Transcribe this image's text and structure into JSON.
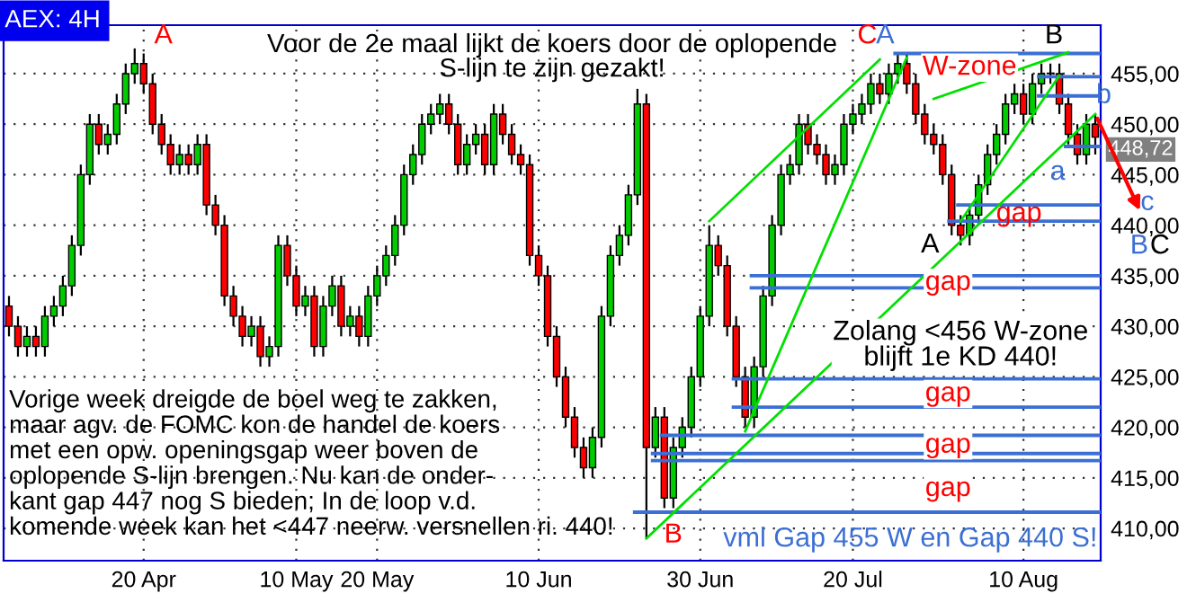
{
  "chart_data": {
    "type": "candlestick",
    "title": "AEX: 4H",
    "subtitle": "Voor de 2e maal lijkt de koers door de oplopende\nS-lijn te zijn gezakt!",
    "categories": [
      null,
      null,
      null,
      null,
      null,
      null,
      null,
      null,
      null,
      null,
      null,
      null,
      null,
      null,
      null,
      "20 Apr",
      null,
      null,
      null,
      null,
      null,
      null,
      null,
      null,
      null,
      null,
      null,
      null,
      null,
      null,
      null,
      null,
      "10 May",
      null,
      null,
      null,
      null,
      null,
      null,
      null,
      null,
      "20 May",
      null,
      null,
      null,
      null,
      null,
      null,
      null,
      null,
      null,
      null,
      null,
      null,
      null,
      null,
      null,
      null,
      null,
      "10 Jun",
      null,
      null,
      null,
      null,
      null,
      null,
      null,
      null,
      null,
      null,
      null,
      null,
      null,
      null,
      null,
      null,
      null,
      "30 Jun",
      null,
      null,
      null,
      null,
      null,
      null,
      null,
      null,
      null,
      null,
      null,
      null,
      null,
      null,
      null,
      null,
      "20 Jul",
      null,
      null,
      null,
      null,
      null,
      null,
      null,
      null,
      null,
      null,
      null,
      null,
      null,
      null,
      null,
      null,
      null,
      null,
      "10 Aug",
      null,
      null,
      null,
      null,
      null,
      null,
      null,
      null
    ],
    "ohlc": [
      [
        432,
        433,
        429,
        430
      ],
      [
        430,
        431,
        427,
        428
      ],
      [
        428,
        430,
        427,
        429
      ],
      [
        429,
        430,
        427,
        428
      ],
      [
        428,
        432,
        427,
        431
      ],
      [
        431,
        433,
        430,
        432
      ],
      [
        432,
        435,
        431,
        434
      ],
      [
        434,
        439,
        433,
        438
      ],
      [
        438,
        446,
        437,
        445
      ],
      [
        445,
        451,
        444,
        450
      ],
      [
        450,
        451,
        447,
        448
      ],
      [
        448,
        450,
        447,
        449
      ],
      [
        449,
        453,
        448,
        452
      ],
      [
        452,
        456,
        451,
        455
      ],
      [
        455,
        457.5,
        454,
        456
      ],
      [
        456,
        457,
        453,
        454
      ],
      [
        454,
        455,
        449,
        450
      ],
      [
        450,
        451,
        447,
        448
      ],
      [
        448,
        449,
        445,
        446
      ],
      [
        446,
        448,
        445,
        447
      ],
      [
        447,
        448,
        445,
        446
      ],
      [
        446,
        449,
        445,
        448
      ],
      [
        448,
        449,
        441,
        442
      ],
      [
        442,
        443,
        439,
        440
      ],
      [
        440,
        441,
        432,
        433
      ],
      [
        433,
        434,
        430,
        431
      ],
      [
        431,
        432,
        428,
        429
      ],
      [
        429,
        431,
        428,
        430
      ],
      [
        430,
        431,
        426,
        427
      ],
      [
        427,
        429,
        426,
        428
      ],
      [
        428,
        439,
        427,
        438
      ],
      [
        438,
        439,
        434,
        435
      ],
      [
        435,
        436,
        431,
        432
      ],
      [
        432,
        434,
        431,
        433
      ],
      [
        433,
        434,
        427,
        428
      ],
      [
        428,
        433,
        427,
        432
      ],
      [
        432,
        435,
        431,
        434
      ],
      [
        434,
        435,
        429,
        430
      ],
      [
        430,
        432,
        429,
        431
      ],
      [
        431,
        432,
        428,
        429
      ],
      [
        429,
        434,
        428,
        433
      ],
      [
        433,
        436,
        432,
        435
      ],
      [
        435,
        438,
        434,
        437
      ],
      [
        437,
        441,
        436,
        440
      ],
      [
        440,
        446,
        439,
        445
      ],
      [
        445,
        448,
        444,
        447
      ],
      [
        447,
        451,
        446,
        450
      ],
      [
        450,
        452,
        449,
        451
      ],
      [
        451,
        453,
        450,
        452
      ],
      [
        452,
        453,
        449,
        450
      ],
      [
        450,
        451,
        445,
        446
      ],
      [
        446,
        449,
        445,
        448
      ],
      [
        448,
        450,
        447,
        449
      ],
      [
        449,
        450,
        445,
        446
      ],
      [
        446,
        452,
        445,
        451
      ],
      [
        451,
        452,
        448,
        449
      ],
      [
        449,
        450,
        446,
        447
      ],
      [
        447,
        448,
        445,
        446
      ],
      [
        446,
        447,
        436,
        437
      ],
      [
        437,
        438,
        434,
        435
      ],
      [
        435,
        436,
        428,
        429
      ],
      [
        429,
        430,
        424,
        425
      ],
      [
        425,
        426,
        420,
        421
      ],
      [
        421,
        422,
        417,
        418
      ],
      [
        418,
        419,
        415,
        416
      ],
      [
        416,
        420,
        415,
        419
      ],
      [
        419,
        432,
        418,
        431
      ],
      [
        431,
        438,
        430,
        437
      ],
      [
        437,
        440,
        436,
        439
      ],
      [
        439,
        444,
        438,
        443
      ],
      [
        443,
        453.5,
        442,
        452
      ],
      [
        452,
        453,
        409,
        418
      ],
      [
        418,
        422,
        417,
        421
      ],
      [
        421,
        422,
        412,
        413
      ],
      [
        413,
        419,
        412,
        418
      ],
      [
        418,
        421,
        417,
        420
      ],
      [
        420,
        426,
        419,
        425
      ],
      [
        425,
        432,
        424,
        431
      ],
      [
        431,
        440,
        430,
        438
      ],
      [
        438,
        439,
        435,
        436
      ],
      [
        436,
        437,
        429,
        430
      ],
      [
        430,
        431,
        424,
        425
      ],
      [
        425,
        426,
        420,
        421
      ],
      [
        421,
        427,
        420,
        426
      ],
      [
        426,
        434,
        425,
        433
      ],
      [
        433,
        441,
        432,
        440
      ],
      [
        440,
        446,
        439,
        445
      ],
      [
        445,
        447,
        444,
        446
      ],
      [
        446,
        451,
        445,
        450
      ],
      [
        450,
        451,
        447,
        448
      ],
      [
        448,
        449,
        446,
        447
      ],
      [
        447,
        448,
        444,
        445
      ],
      [
        445,
        447,
        444,
        446
      ],
      [
        446,
        451,
        445,
        450
      ],
      [
        450,
        452,
        449,
        451
      ],
      [
        451,
        453,
        450,
        452
      ],
      [
        452,
        455,
        451,
        454
      ],
      [
        454,
        455,
        452,
        453
      ],
      [
        453,
        456,
        452,
        455
      ],
      [
        455,
        457,
        454,
        456
      ],
      [
        456,
        457,
        453,
        454
      ],
      [
        454,
        455,
        450,
        451
      ],
      [
        451,
        452,
        448,
        449
      ],
      [
        449,
        450,
        447,
        448
      ],
      [
        448,
        449,
        444,
        445
      ],
      [
        445,
        446,
        439,
        440
      ],
      [
        440,
        441,
        438,
        439
      ],
      [
        439,
        442,
        438,
        441
      ],
      [
        441,
        445,
        440,
        444
      ],
      [
        444,
        448,
        443,
        447
      ],
      [
        447,
        450,
        446,
        449
      ],
      [
        449,
        453,
        448,
        452
      ],
      [
        452,
        454,
        451,
        453
      ],
      [
        453,
        454,
        450,
        451
      ],
      [
        451,
        455,
        450,
        454
      ],
      [
        454,
        456,
        453,
        455
      ],
      [
        455,
        456,
        454,
        455
      ],
      [
        455,
        456,
        451,
        452
      ],
      [
        452,
        453,
        448,
        449
      ],
      [
        449,
        450,
        446,
        447
      ],
      [
        447,
        451,
        446,
        450
      ],
      [
        450,
        451,
        447,
        448.72
      ]
    ],
    "colors": [
      "#ff0000",
      "#ff0000",
      "#00cc00",
      "#ff0000",
      "#00cc00",
      "#00cc00",
      "#00cc00",
      "#00cc00",
      "#00cc00",
      "#00cc00",
      "#ff0000",
      "#00cc00",
      "#00cc00",
      "#00cc00",
      "#00cc00",
      "#ff0000",
      "#ff0000",
      "#ff0000",
      "#ff0000",
      "#00cc00",
      "#ff0000",
      "#00cc00",
      "#ff0000",
      "#ff0000",
      "#ff0000",
      "#ff0000",
      "#ff0000",
      "#00cc00",
      "#ff0000",
      "#00cc00",
      "#00cc00",
      "#ff0000",
      "#ff0000",
      "#00cc00",
      "#ff0000",
      "#00cc00",
      "#00cc00",
      "#ff0000",
      "#00cc00",
      "#ff0000",
      "#00cc00",
      "#00cc00",
      "#00cc00",
      "#00cc00",
      "#00cc00",
      "#00cc00",
      "#00cc00",
      "#00cc00",
      "#00cc00",
      "#ff0000",
      "#ff0000",
      "#00cc00",
      "#00cc00",
      "#ff0000",
      "#00cc00",
      "#ff0000",
      "#ff0000",
      "#ff0000",
      "#ff0000",
      "#ff0000",
      "#ff0000",
      "#ff0000",
      "#ff0000",
      "#ff0000",
      "#ff0000",
      "#00cc00",
      "#00cc00",
      "#00cc00",
      "#00cc00",
      "#00cc00",
      "#00cc00",
      "#ff0000",
      "#00cc00",
      "#ff0000",
      "#00cc00",
      "#00cc00",
      "#00cc00",
      "#00cc00",
      "#00cc00",
      "#ff0000",
      "#ff0000",
      "#ff0000",
      "#ff0000",
      "#00cc00",
      "#00cc00",
      "#00cc00",
      "#00cc00",
      "#00cc00",
      "#00cc00",
      "#ff0000",
      "#ff0000",
      "#ff0000",
      "#00cc00",
      "#00cc00",
      "#00cc00",
      "#00cc00",
      "#00cc00",
      "#ff0000",
      "#00cc00",
      "#00cc00",
      "#ff0000",
      "#ff0000",
      "#ff0000",
      "#ff0000",
      "#ff0000",
      "#ff0000",
      "#ff0000",
      "#00cc00",
      "#00cc00",
      "#00cc00",
      "#00cc00",
      "#00cc00",
      "#00cc00",
      "#ff0000",
      "#00cc00",
      "#00cc00",
      "#00cc00",
      "#ff0000",
      "#ff0000",
      "#ff0000",
      "#00cc00",
      "#ff0000"
    ],
    "ylim": [
      406.8,
      459.8
    ],
    "yticks": [
      {
        "value": 410,
        "label": "410,00"
      },
      {
        "value": 415,
        "label": "415,00"
      },
      {
        "value": 420,
        "label": "420,00"
      },
      {
        "value": 425,
        "label": "425,00"
      },
      {
        "value": 430,
        "label": "430,00"
      },
      {
        "value": 435,
        "label": "435,00"
      },
      {
        "value": 440,
        "label": "440,00"
      },
      {
        "value": 445,
        "label": "445,00"
      },
      {
        "value": 450,
        "label": "450,00"
      },
      {
        "value": 455,
        "label": "455,00"
      }
    ],
    "grid": true,
    "series": [
      {
        "type": "line",
        "color": "#00e000",
        "values": [
          null,
          null,
          null,
          null,
          null,
          null,
          null,
          null,
          null,
          null,
          null,
          null,
          null,
          null,
          null,
          null,
          null,
          null,
          null,
          null,
          null,
          null,
          null,
          null,
          null,
          null,
          null,
          null,
          null,
          null,
          null,
          null,
          null,
          null,
          null,
          null,
          null,
          null,
          null,
          null,
          null,
          null,
          null,
          null,
          null,
          null,
          null,
          null,
          null,
          null,
          null,
          null,
          null,
          null,
          null,
          null,
          null,
          null,
          null,
          null,
          null,
          null,
          null,
          null,
          null,
          null,
          null,
          null,
          null,
          null,
          null,
          409,
          null,
          null,
          null,
          null,
          null,
          null,
          null,
          null,
          null,
          null,
          null,
          null,
          null,
          null,
          null,
          null,
          null,
          null,
          null,
          null,
          null,
          null,
          null,
          null,
          null,
          null,
          null,
          null,
          null,
          null,
          null,
          null,
          null,
          null,
          null,
          null,
          null,
          null,
          null,
          null,
          null,
          null,
          null,
          null,
          null,
          null,
          null,
          null,
          null,
          451
        ]
      },
      {
        "type": "line",
        "color": "#00e000",
        "values": [
          null,
          null,
          null,
          null,
          null,
          null,
          null,
          null,
          null,
          null,
          null,
          null,
          null,
          null,
          null,
          null,
          null,
          null,
          null,
          null,
          null,
          null,
          null,
          null,
          null,
          null,
          null,
          null,
          null,
          null,
          null,
          null,
          null,
          null,
          null,
          null,
          null,
          null,
          null,
          null,
          null,
          null,
          null,
          null,
          null,
          null,
          null,
          null,
          null,
          null,
          null,
          null,
          null,
          null,
          null,
          null,
          null,
          null,
          null,
          null,
          null,
          null,
          null,
          null,
          null,
          null,
          null,
          null,
          null,
          null,
          null,
          null,
          null,
          null,
          null,
          null,
          null,
          null,
          440.4,
          null,
          null,
          null,
          null,
          null,
          null,
          null,
          null,
          null,
          null,
          null,
          null,
          null,
          null,
          null,
          null,
          null,
          null,
          456.4,
          null,
          null,
          null,
          null,
          null,
          null,
          null,
          null,
          null,
          null,
          null,
          null,
          null,
          null,
          null,
          null,
          null,
          null,
          null,
          null,
          null,
          null,
          null,
          null
        ]
      },
      {
        "type": "line",
        "color": "#00e000",
        "values": [
          null,
          null,
          null,
          null,
          null,
          null,
          null,
          null,
          null,
          null,
          null,
          null,
          null,
          null,
          null,
          null,
          null,
          null,
          null,
          null,
          null,
          null,
          null,
          null,
          null,
          null,
          null,
          null,
          null,
          null,
          null,
          null,
          null,
          null,
          null,
          null,
          null,
          null,
          null,
          null,
          null,
          null,
          null,
          null,
          null,
          null,
          null,
          null,
          null,
          null,
          null,
          null,
          null,
          null,
          null,
          null,
          null,
          null,
          null,
          null,
          null,
          null,
          null,
          null,
          null,
          null,
          null,
          null,
          null,
          null,
          null,
          null,
          null,
          null,
          null,
          null,
          null,
          null,
          null,
          null,
          null,
          null,
          419.6,
          null,
          null,
          null,
          null,
          null,
          null,
          null,
          null,
          null,
          null,
          null,
          null,
          null,
          null,
          null,
          null,
          null,
          456.6,
          null,
          null,
          null,
          null,
          null,
          null,
          null,
          null,
          null,
          null,
          null,
          null,
          null,
          null,
          null,
          null,
          null,
          null,
          null,
          null,
          null
        ]
      },
      {
        "type": "line",
        "color": "#00e000",
        "values": [
          null,
          null,
          null,
          null,
          null,
          null,
          null,
          null,
          null,
          null,
          null,
          null,
          null,
          null,
          null,
          null,
          null,
          null,
          null,
          null,
          null,
          null,
          null,
          null,
          null,
          null,
          null,
          null,
          null,
          null,
          null,
          null,
          null,
          null,
          null,
          null,
          null,
          null,
          null,
          null,
          null,
          null,
          null,
          null,
          null,
          null,
          null,
          null,
          null,
          null,
          null,
          null,
          null,
          null,
          null,
          null,
          null,
          null,
          null,
          null,
          null,
          null,
          null,
          null,
          null,
          null,
          null,
          null,
          null,
          null,
          null,
          null,
          null,
          null,
          null,
          null,
          null,
          null,
          null,
          null,
          null,
          null,
          null,
          null,
          null,
          null,
          null,
          null,
          null,
          null,
          null,
          null,
          null,
          null,
          null,
          null,
          null,
          null,
          null,
          null,
          null,
          null,
          null,
          452.5,
          null,
          null,
          null,
          null,
          null,
          null,
          null,
          null,
          null,
          null,
          null,
          null,
          null,
          null,
          457.1,
          null,
          null,
          null
        ]
      },
      {
        "type": "line",
        "color": "#00e000",
        "values": [
          null,
          null,
          null,
          null,
          null,
          null,
          null,
          null,
          null,
          null,
          null,
          null,
          null,
          null,
          null,
          null,
          null,
          null,
          null,
          null,
          null,
          null,
          null,
          null,
          null,
          null,
          null,
          null,
          null,
          null,
          null,
          null,
          null,
          null,
          null,
          null,
          null,
          null,
          null,
          null,
          null,
          null,
          null,
          null,
          null,
          null,
          null,
          null,
          null,
          null,
          null,
          null,
          null,
          null,
          null,
          null,
          null,
          null,
          null,
          null,
          null,
          null,
          null,
          null,
          null,
          null,
          null,
          null,
          null,
          null,
          null,
          null,
          null,
          null,
          null,
          null,
          null,
          null,
          null,
          null,
          null,
          null,
          null,
          null,
          null,
          null,
          null,
          null,
          null,
          null,
          null,
          null,
          null,
          null,
          null,
          null,
          null,
          null,
          null,
          null,
          null,
          null,
          null,
          null,
          null,
          null,
          440.4,
          null,
          null,
          null,
          null,
          null,
          null,
          null,
          null,
          null,
          null,
          454.8,
          null,
          null,
          null,
          null
        ]
      }
    ],
    "ref_lines": [
      {
        "axis": "y",
        "value": 457,
        "color": "#3b6fd4"
      },
      {
        "axis": "y",
        "value": 454.7,
        "color": "#3b6fd4",
        "label": "W-zone"
      },
      {
        "axis": "y",
        "value": 452.8,
        "color": "#3b6fd4",
        "label": "b"
      },
      {
        "axis": "y",
        "value": 447.8,
        "color": "#3b6fd4",
        "label": "a"
      },
      {
        "axis": "y",
        "value": 442,
        "color": "#3b6fd4"
      },
      {
        "axis": "y",
        "value": 440.4,
        "color": "#3b6fd4"
      },
      {
        "axis": "y",
        "value": 435,
        "color": "#3b6fd4"
      },
      {
        "axis": "y",
        "value": 433.8,
        "color": "#3b6fd4"
      },
      {
        "axis": "y",
        "value": 424.8,
        "color": "#3b6fd4"
      },
      {
        "axis": "y",
        "value": 422,
        "color": "#3b6fd4"
      },
      {
        "axis": "y",
        "value": 419.2,
        "color": "#3b6fd4"
      },
      {
        "axis": "y",
        "value": 417.4,
        "color": "#3b6fd4"
      },
      {
        "axis": "y",
        "value": 416.7,
        "color": "#3b6fd4"
      },
      {
        "axis": "y",
        "value": 411.6,
        "color": "#3b6fd4"
      }
    ],
    "annotations": [
      "Vorige week dreigde de boel weg te zakken,\nmaar agv. de FOMC kon de handel de koers\nmet een opw. openingsgap weer boven de\noplopende S-lijn brengen. Nu kan de onder-\nkant gap 447 nog S bieden; In de loop v.d.\nkomende week kan het <447 neerw. versnellen ri. 440!",
      "A",
      "B",
      "C",
      "A",
      "B",
      "A",
      "gap",
      "gap",
      "gap",
      "gap",
      "gap",
      "Zolang <456 W-zone\nblijft 1e KD 440!",
      "vml Gap 455 W en Gap 440 S!",
      "448,72",
      "B",
      "C",
      "c"
    ]
  }
}
